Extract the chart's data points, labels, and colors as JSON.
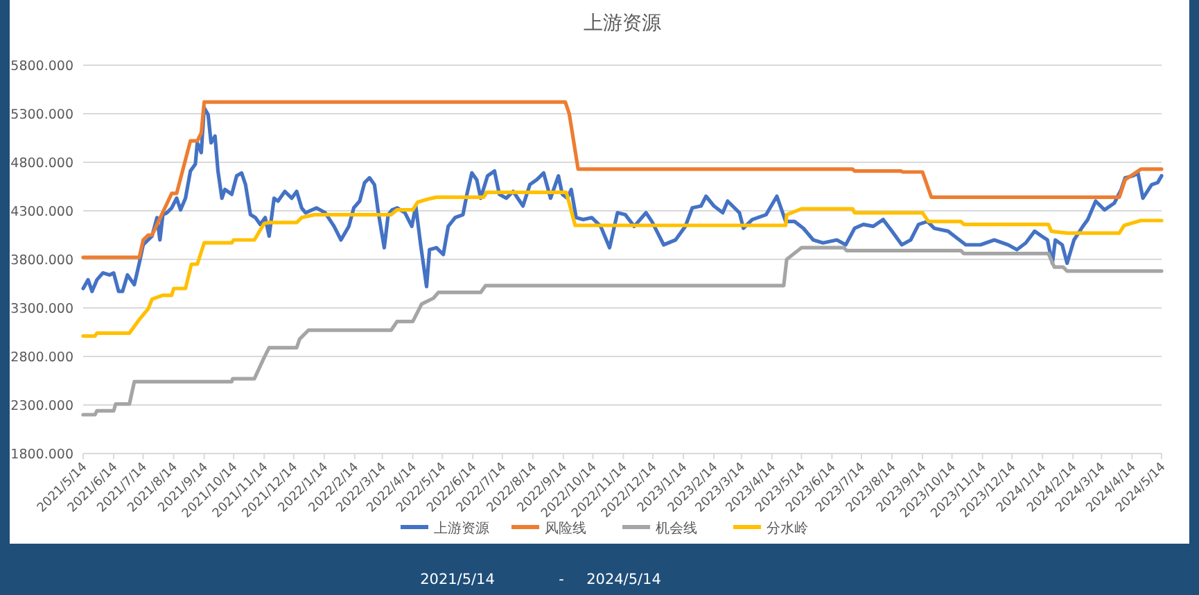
{
  "chart_data": {
    "type": "line",
    "title": "上游资源",
    "xlim": [
      "2021-05-14",
      "2024-05-14"
    ],
    "xticks": [
      {
        "value": "2021-05-14",
        "label": "2021/5/14"
      },
      {
        "value": "2021-06-14",
        "label": "2021/6/14"
      },
      {
        "value": "2021-07-14",
        "label": "2021/7/14"
      },
      {
        "value": "2021-08-14",
        "label": "2021/8/14"
      },
      {
        "value": "2021-09-14",
        "label": "2021/9/14"
      },
      {
        "value": "2021-10-14",
        "label": "2021/10/14"
      },
      {
        "value": "2021-11-14",
        "label": "2021/11/14"
      },
      {
        "value": "2021-12-14",
        "label": "2021/12/14"
      },
      {
        "value": "2022-01-14",
        "label": "2022/1/14"
      },
      {
        "value": "2022-02-14",
        "label": "2022/2/14"
      },
      {
        "value": "2022-03-14",
        "label": "2022/3/14"
      },
      {
        "value": "2022-04-14",
        "label": "2022/4/14"
      },
      {
        "value": "2022-05-14",
        "label": "2022/5/14"
      },
      {
        "value": "2022-06-14",
        "label": "2022/6/14"
      },
      {
        "value": "2022-07-14",
        "label": "2022/7/14"
      },
      {
        "value": "2022-08-14",
        "label": "2022/8/14"
      },
      {
        "value": "2022-09-14",
        "label": "2022/9/14"
      },
      {
        "value": "2022-10-14",
        "label": "2022/10/14"
      },
      {
        "value": "2022-11-14",
        "label": "2022/11/14"
      },
      {
        "value": "2022-12-14",
        "label": "2022/12/14"
      },
      {
        "value": "2023-01-14",
        "label": "2023/1/14"
      },
      {
        "value": "2023-02-14",
        "label": "2023/2/14"
      },
      {
        "value": "2023-03-14",
        "label": "2023/3/14"
      },
      {
        "value": "2023-04-14",
        "label": "2023/4/14"
      },
      {
        "value": "2023-05-14",
        "label": "2023/5/14"
      },
      {
        "value": "2023-06-14",
        "label": "2023/6/14"
      },
      {
        "value": "2023-07-14",
        "label": "2023/7/14"
      },
      {
        "value": "2023-08-14",
        "label": "2023/8/14"
      },
      {
        "value": "2023-09-14",
        "label": "2023/9/14"
      },
      {
        "value": "2023-10-14",
        "label": "2023/10/14"
      },
      {
        "value": "2023-11-14",
        "label": "2023/11/14"
      },
      {
        "value": "2023-12-14",
        "label": "2023/12/14"
      },
      {
        "value": "2024-01-14",
        "label": "2024/1/14"
      },
      {
        "value": "2024-02-14",
        "label": "2024/2/14"
      },
      {
        "value": "2024-03-14",
        "label": "2024/3/14"
      },
      {
        "value": "2024-04-14",
        "label": "2024/4/14"
      },
      {
        "value": "2024-05-14",
        "label": "2024/5/14"
      }
    ],
    "ylim": [
      1800,
      5800
    ],
    "yticks": [
      {
        "value": 1800,
        "label": "1800.000"
      },
      {
        "value": 2300,
        "label": "2300.000"
      },
      {
        "value": 2800,
        "label": "2800.000"
      },
      {
        "value": 3300,
        "label": "3300.000"
      },
      {
        "value": 3800,
        "label": "3800.000"
      },
      {
        "value": 4300,
        "label": "4300.000"
      },
      {
        "value": 4800,
        "label": "4800.000"
      },
      {
        "value": 5300,
        "label": "5300.000"
      },
      {
        "value": 5800,
        "label": "5800.000"
      }
    ],
    "grid": "y",
    "legend": "bottom",
    "line_style": "solid",
    "annotations": [
      "2021/5/14",
      "-",
      "2024/5/14"
    ],
    "series": [
      {
        "name": "上游资源",
        "color": "#4472c4",
        "x": [
          "2021-05-14",
          "2021-05-19",
          "2021-05-23",
          "2021-05-28",
          "2021-06-03",
          "2021-06-10",
          "2021-06-14",
          "2021-06-19",
          "2021-06-23",
          "2021-06-28",
          "2021-07-05",
          "2021-07-10",
          "2021-07-14",
          "2021-07-19",
          "2021-07-23",
          "2021-07-28",
          "2021-07-31",
          "2021-08-03",
          "2021-08-07",
          "2021-08-12",
          "2021-08-17",
          "2021-08-21",
          "2021-08-26",
          "2021-08-31",
          "2021-09-05",
          "2021-09-07",
          "2021-09-11",
          "2021-09-14",
          "2021-09-18",
          "2021-09-21",
          "2021-09-25",
          "2021-09-28",
          "2021-10-02",
          "2021-10-05",
          "2021-10-12",
          "2021-10-17",
          "2021-10-22",
          "2021-10-26",
          "2021-10-31",
          "2021-11-05",
          "2021-11-10",
          "2021-11-15",
          "2021-11-19",
          "2021-11-24",
          "2021-11-28",
          "2021-12-05",
          "2021-12-12",
          "2021-12-17",
          "2021-12-22",
          "2021-12-26",
          "2022-01-06",
          "2022-01-15",
          "2022-01-24",
          "2022-01-31",
          "2022-02-08",
          "2022-02-13",
          "2022-02-19",
          "2022-02-24",
          "2022-03-01",
          "2022-03-06",
          "2022-03-10",
          "2022-03-16",
          "2022-03-20",
          "2022-03-24",
          "2022-03-29",
          "2022-04-06",
          "2022-04-13",
          "2022-04-17",
          "2022-04-22",
          "2022-04-28",
          "2022-05-01",
          "2022-05-08",
          "2022-05-15",
          "2022-05-20",
          "2022-05-27",
          "2022-06-04",
          "2022-06-08",
          "2022-06-13",
          "2022-06-18",
          "2022-06-22",
          "2022-06-29",
          "2022-07-06",
          "2022-07-11",
          "2022-07-18",
          "2022-07-25",
          "2022-08-04",
          "2022-08-11",
          "2022-08-18",
          "2022-08-25",
          "2022-09-01",
          "2022-09-09",
          "2022-09-13",
          "2022-09-18",
          "2022-09-22",
          "2022-09-27",
          "2022-10-04",
          "2022-10-13",
          "2022-10-22",
          "2022-10-31",
          "2022-11-08",
          "2022-11-16",
          "2022-11-25",
          "2022-12-07",
          "2022-12-13",
          "2022-12-25",
          "2023-01-06",
          "2023-01-16",
          "2023-01-23",
          "2023-02-01",
          "2023-02-06",
          "2023-02-14",
          "2023-02-23",
          "2023-02-28",
          "2023-03-12",
          "2023-03-16",
          "2023-03-25",
          "2023-04-08",
          "2023-04-19",
          "2023-04-28",
          "2023-05-07",
          "2023-05-16",
          "2023-05-26",
          "2023-06-05",
          "2023-06-19",
          "2023-06-28",
          "2023-07-07",
          "2023-07-16",
          "2023-07-26",
          "2023-08-05",
          "2023-08-14",
          "2023-08-24",
          "2023-09-02",
          "2023-09-10",
          "2023-09-19",
          "2023-09-26",
          "2023-10-10",
          "2023-10-19",
          "2023-10-28",
          "2023-11-12",
          "2023-11-26",
          "2023-12-10",
          "2023-12-19",
          "2023-12-28",
          "2024-01-06",
          "2024-01-13",
          "2024-01-19",
          "2024-01-24",
          "2024-01-27",
          "2024-02-03",
          "2024-02-08",
          "2024-02-15",
          "2024-02-24",
          "2024-02-29",
          "2024-03-08",
          "2024-03-17",
          "2024-03-27",
          "2024-04-03",
          "2024-04-07",
          "2024-04-15",
          "2024-04-20",
          "2024-04-25",
          "2024-05-04",
          "2024-05-10",
          "2024-05-14"
        ],
        "values": [
          3500,
          3590,
          3470,
          3590,
          3660,
          3640,
          3660,
          3470,
          3470,
          3640,
          3540,
          3760,
          3950,
          4000,
          4040,
          4230,
          4000,
          4260,
          4280,
          4330,
          4430,
          4310,
          4430,
          4710,
          4780,
          5000,
          4900,
          5360,
          5290,
          5000,
          5070,
          4710,
          4430,
          4520,
          4470,
          4660,
          4690,
          4570,
          4260,
          4230,
          4160,
          4230,
          4040,
          4430,
          4400,
          4500,
          4430,
          4500,
          4330,
          4280,
          4330,
          4280,
          4140,
          4000,
          4140,
          4330,
          4400,
          4590,
          4640,
          4570,
          4280,
          3920,
          4260,
          4310,
          4330,
          4280,
          4140,
          4350,
          3950,
          3520,
          3900,
          3920,
          3850,
          4140,
          4230,
          4260,
          4470,
          4690,
          4620,
          4430,
          4660,
          4710,
          4470,
          4430,
          4500,
          4350,
          4570,
          4620,
          4690,
          4430,
          4660,
          4470,
          4430,
          4520,
          4230,
          4210,
          4230,
          4140,
          3920,
          4280,
          4260,
          4140,
          4280,
          4190,
          3950,
          4000,
          4140,
          4330,
          4350,
          4450,
          4350,
          4280,
          4400,
          4280,
          4120,
          4210,
          4260,
          4450,
          4190,
          4190,
          4120,
          4000,
          3970,
          4000,
          3950,
          4120,
          4160,
          4140,
          4210,
          4090,
          3950,
          4000,
          4160,
          4190,
          4120,
          4090,
          4020,
          3950,
          3950,
          4000,
          3950,
          3900,
          3970,
          4090,
          4040,
          4000,
          3760,
          4000,
          3950,
          3760,
          4000,
          4140,
          4210,
          4400,
          4310,
          4380,
          4520,
          4640,
          4660,
          4690,
          4430,
          4570,
          4590,
          4660
        ]
      },
      {
        "name": "风险线",
        "color": "#ed7d31",
        "x": [
          "2021-05-14",
          "2021-07-10",
          "2021-07-14",
          "2021-07-19",
          "2021-07-23",
          "2021-08-12",
          "2021-08-17",
          "2021-08-31",
          "2021-09-07",
          "2021-09-11",
          "2021-09-14",
          "2022-09-16",
          "2022-09-20",
          "2022-09-29",
          "2023-07-05",
          "2023-07-07",
          "2023-08-23",
          "2023-08-25",
          "2023-09-14",
          "2023-09-23",
          "2024-04-01",
          "2024-04-07",
          "2024-04-23",
          "2024-05-14"
        ],
        "values": [
          3820,
          3820,
          4000,
          4050,
          4050,
          4480,
          4480,
          5020,
          5020,
          5100,
          5420,
          5420,
          5300,
          4730,
          4730,
          4710,
          4710,
          4700,
          4700,
          4440,
          4440,
          4620,
          4730,
          4730
        ]
      },
      {
        "name": "机会线",
        "color": "#a5a5a5",
        "x": [
          "2021-05-14",
          "2021-05-26",
          "2021-05-28",
          "2021-06-14",
          "2021-06-16",
          "2021-06-30",
          "2021-07-05",
          "2021-10-12",
          "2021-10-13",
          "2021-11-04",
          "2021-11-14",
          "2021-11-19",
          "2021-12-17",
          "2021-12-20",
          "2021-12-29",
          "2022-03-23",
          "2022-03-29",
          "2022-04-14",
          "2022-04-23",
          "2022-05-05",
          "2022-05-10",
          "2022-06-22",
          "2022-06-27",
          "2023-04-26",
          "2023-04-29",
          "2023-05-14",
          "2023-06-26",
          "2023-06-29",
          "2023-10-23",
          "2023-10-26",
          "2024-01-20",
          "2024-01-26",
          "2024-02-04",
          "2024-02-08",
          "2024-05-14"
        ],
        "values": [
          2200,
          2200,
          2240,
          2240,
          2310,
          2310,
          2540,
          2540,
          2570,
          2570,
          2790,
          2890,
          2890,
          2980,
          3070,
          3070,
          3160,
          3160,
          3340,
          3400,
          3460,
          3460,
          3530,
          3530,
          3800,
          3920,
          3920,
          3890,
          3890,
          3860,
          3860,
          3720,
          3720,
          3680,
          3680
        ]
      },
      {
        "name": "分水岭",
        "color": "#ffc000",
        "x": [
          "2021-05-14",
          "2021-05-26",
          "2021-05-28",
          "2021-06-30",
          "2021-07-10",
          "2021-07-19",
          "2021-07-23",
          "2021-08-03",
          "2021-08-12",
          "2021-08-14",
          "2021-08-26",
          "2021-09-01",
          "2021-09-07",
          "2021-09-14",
          "2021-10-12",
          "2021-10-14",
          "2021-11-04",
          "2021-11-14",
          "2021-11-19",
          "2021-12-17",
          "2021-12-22",
          "2022-01-04",
          "2022-03-23",
          "2022-03-29",
          "2022-04-14",
          "2022-04-19",
          "2022-04-29",
          "2022-05-08",
          "2022-06-25",
          "2022-06-28",
          "2022-09-17",
          "2022-09-26",
          "2023-04-28",
          "2023-04-29",
          "2023-05-14",
          "2023-07-05",
          "2023-07-07",
          "2023-09-14",
          "2023-09-20",
          "2023-10-23",
          "2023-10-26",
          "2024-01-20",
          "2024-01-23",
          "2024-02-08",
          "2024-04-01",
          "2024-04-06",
          "2024-04-23",
          "2024-05-14"
        ],
        "values": [
          3010,
          3010,
          3040,
          3040,
          3180,
          3290,
          3390,
          3430,
          3430,
          3500,
          3500,
          3750,
          3750,
          3970,
          3970,
          4000,
          4000,
          4170,
          4180,
          4180,
          4230,
          4260,
          4260,
          4310,
          4310,
          4390,
          4420,
          4440,
          4440,
          4490,
          4490,
          4150,
          4150,
          4260,
          4320,
          4320,
          4280,
          4280,
          4190,
          4190,
          4160,
          4160,
          4090,
          4070,
          4070,
          4150,
          4200,
          4200
        ]
      }
    ]
  }
}
